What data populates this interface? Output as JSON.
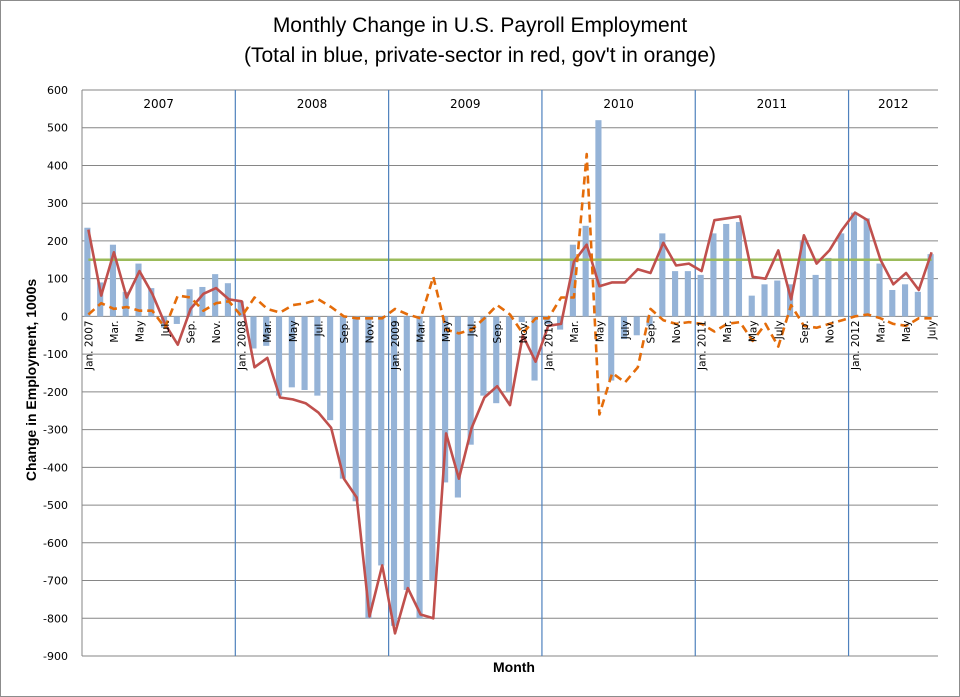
{
  "chart_data": {
    "type": "bar+line",
    "title": "Monthly Change in U.S. Payroll Employment",
    "subtitle": "(Total in blue, private-sector in red, gov't in orange)",
    "xlabel": "Month",
    "ylabel": "Change  in Employment, 1000s",
    "ylim": [
      -900,
      600
    ],
    "yticks": [
      600,
      500,
      400,
      300,
      200,
      100,
      0,
      -100,
      -200,
      -300,
      -400,
      -500,
      -600,
      -700,
      -800,
      -900
    ],
    "grid": true,
    "reference_line": {
      "value": 150,
      "color": "#9bbb59"
    },
    "years": [
      "2007",
      "2008",
      "2009",
      "2010",
      "2011",
      "2012"
    ],
    "x_tick_labels": [
      {
        "index": 0,
        "label": "Jan. 2007"
      },
      {
        "index": 2,
        "label": "Mar."
      },
      {
        "index": 4,
        "label": "May"
      },
      {
        "index": 6,
        "label": "Jul."
      },
      {
        "index": 8,
        "label": "Sep."
      },
      {
        "index": 10,
        "label": "Nov."
      },
      {
        "index": 12,
        "label": "Jan. 2008"
      },
      {
        "index": 14,
        "label": "Mar."
      },
      {
        "index": 16,
        "label": "May"
      },
      {
        "index": 18,
        "label": "Jul."
      },
      {
        "index": 20,
        "label": "Sep."
      },
      {
        "index": 22,
        "label": "Nov."
      },
      {
        "index": 24,
        "label": "Jan. 2009"
      },
      {
        "index": 26,
        "label": "Mar."
      },
      {
        "index": 28,
        "label": "May"
      },
      {
        "index": 30,
        "label": "Jul."
      },
      {
        "index": 32,
        "label": "Sep."
      },
      {
        "index": 34,
        "label": "Nov."
      },
      {
        "index": 36,
        "label": "Jan. 2010"
      },
      {
        "index": 38,
        "label": "Mar."
      },
      {
        "index": 40,
        "label": "May"
      },
      {
        "index": 42,
        "label": "July"
      },
      {
        "index": 44,
        "label": "Sep."
      },
      {
        "index": 46,
        "label": "Nov."
      },
      {
        "index": 48,
        "label": "Jan. 2011"
      },
      {
        "index": 50,
        "label": "Mar."
      },
      {
        "index": 52,
        "label": "May"
      },
      {
        "index": 54,
        "label": "July"
      },
      {
        "index": 56,
        "label": "Sep."
      },
      {
        "index": 58,
        "label": "Nov."
      },
      {
        "index": 60,
        "label": "Jan. 2012"
      },
      {
        "index": 62,
        "label": "Mar."
      },
      {
        "index": 64,
        "label": "May"
      },
      {
        "index": 66,
        "label": "July"
      }
    ],
    "series": [
      {
        "name": "Total",
        "type": "bar",
        "color": "#95b3d7",
        "values": [
          235,
          90,
          190,
          65,
          140,
          75,
          -30,
          -20,
          72,
          78,
          112,
          88,
          40,
          -85,
          -78,
          -210,
          -188,
          -195,
          -210,
          -275,
          -430,
          -490,
          -800,
          -660,
          -820,
          -725,
          -800,
          -700,
          -440,
          -480,
          -340,
          -210,
          -230,
          -200,
          -15,
          -170,
          -20,
          -35,
          190,
          240,
          520,
          -170,
          -60,
          -50,
          -25,
          220,
          120,
          120,
          110,
          220,
          245,
          250,
          55,
          85,
          95,
          85,
          200,
          110,
          155,
          220,
          275,
          260,
          140,
          70,
          85,
          65,
          165
        ]
      },
      {
        "name": "Private-sector",
        "type": "line",
        "color": "#c0504d",
        "values": [
          230,
          55,
          170,
          50,
          120,
          60,
          -20,
          -75,
          20,
          60,
          75,
          45,
          40,
          -135,
          -110,
          -215,
          -220,
          -230,
          -255,
          -295,
          -430,
          -480,
          -795,
          -660,
          -840,
          -720,
          -790,
          -800,
          -310,
          -430,
          -295,
          -215,
          -185,
          -235,
          -50,
          -120,
          -25,
          -20,
          145,
          190,
          80,
          90,
          90,
          125,
          115,
          195,
          135,
          140,
          120,
          255,
          260,
          265,
          105,
          100,
          175,
          45,
          215,
          140,
          175,
          230,
          275,
          255,
          150,
          85,
          115,
          70,
          170
        ]
      },
      {
        "name": "Government",
        "type": "line",
        "dashed": true,
        "color": "#e46c0a",
        "values": [
          5,
          35,
          20,
          25,
          15,
          15,
          -30,
          55,
          50,
          15,
          35,
          40,
          0,
          50,
          20,
          10,
          30,
          35,
          45,
          25,
          0,
          -5,
          -5,
          -5,
          20,
          5,
          -5,
          105,
          -35,
          -45,
          -35,
          -5,
          30,
          5,
          -45,
          -5,
          -5,
          50,
          50,
          430,
          -260,
          -150,
          -175,
          -135,
          20,
          -10,
          -20,
          -15,
          -20,
          -40,
          -20,
          -15,
          -65,
          -20,
          -80,
          30,
          -25,
          -30,
          -20,
          -10,
          0,
          5,
          -5,
          -20,
          -25,
          -5,
          -5
        ]
      }
    ]
  }
}
